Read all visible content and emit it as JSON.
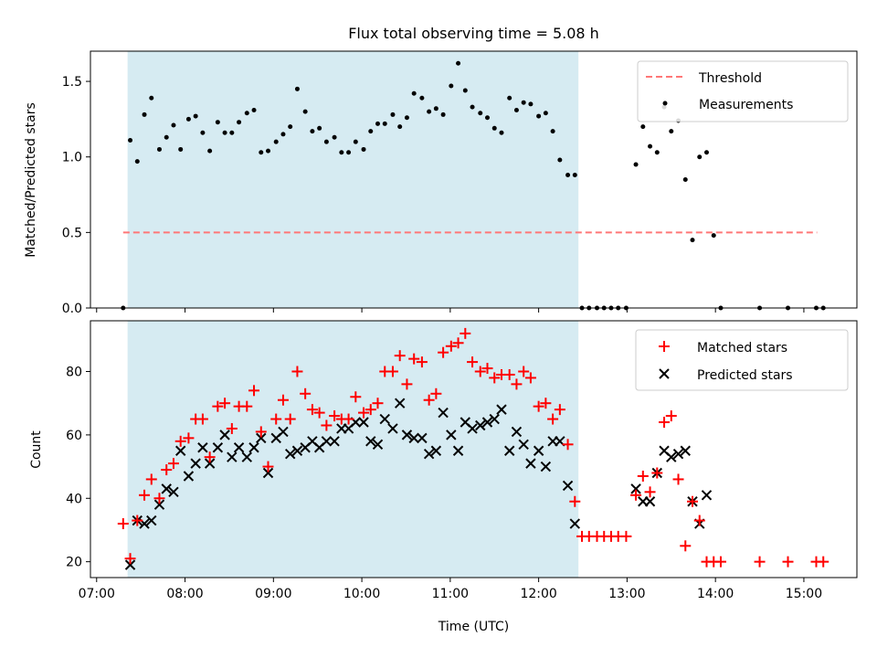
{
  "chart_data": [
    {
      "type": "scatter",
      "title": "Flux total observing time = 5.08 h",
      "xlabel": "",
      "ylabel": "Matched/Predicted stars",
      "x_unit": "time of day (UTC), decimal hours",
      "xlim": [
        6.93,
        15.6
      ],
      "ylim": [
        0.0,
        1.7
      ],
      "yticks": [
        0.0,
        0.5,
        1.0,
        1.5
      ],
      "xticks": [
        7,
        8,
        9,
        10,
        11,
        12,
        13,
        14,
        15
      ],
      "shaded_span": [
        7.35,
        12.45
      ],
      "threshold": {
        "name": "Threshold",
        "y": 0.5,
        "x_range": [
          7.3,
          15.15
        ],
        "color": "#ff7777"
      },
      "legend": [
        "Threshold",
        "Measurements"
      ],
      "legend_position": "upper right",
      "series": [
        {
          "name": "Measurements",
          "color": "#000000",
          "x": [
            7.3,
            7.38,
            7.46,
            7.54,
            7.62,
            7.71,
            7.79,
            7.87,
            7.95,
            8.04,
            8.12,
            8.2,
            8.28,
            8.37,
            8.45,
            8.53,
            8.61,
            8.7,
            8.78,
            8.86,
            8.94,
            9.03,
            9.11,
            9.19,
            9.27,
            9.36,
            9.44,
            9.52,
            9.6,
            9.69,
            9.77,
            9.85,
            9.93,
            10.02,
            10.1,
            10.18,
            10.26,
            10.35,
            10.43,
            10.51,
            10.59,
            10.68,
            10.76,
            10.84,
            10.92,
            11.01,
            11.09,
            11.17,
            11.25,
            11.34,
            11.42,
            11.5,
            11.58,
            11.67,
            11.75,
            11.83,
            11.91,
            12.0,
            12.08,
            12.16,
            12.24,
            12.33,
            12.41,
            12.49,
            12.57,
            12.66,
            12.74,
            12.82,
            12.9,
            12.99,
            13.1,
            13.18,
            13.26,
            13.34,
            13.42,
            13.5,
            13.58,
            13.66,
            13.74,
            13.82,
            13.9,
            13.98,
            14.06,
            14.5,
            14.82,
            15.14,
            15.22
          ],
          "y": [
            0.0,
            1.11,
            0.97,
            1.28,
            1.39,
            1.05,
            1.13,
            1.21,
            1.05,
            1.25,
            1.27,
            1.16,
            1.04,
            1.23,
            1.16,
            1.16,
            1.23,
            1.29,
            1.31,
            1.03,
            1.04,
            1.1,
            1.15,
            1.2,
            1.45,
            1.3,
            1.17,
            1.19,
            1.1,
            1.13,
            1.03,
            1.03,
            1.1,
            1.05,
            1.17,
            1.22,
            1.22,
            1.28,
            1.2,
            1.26,
            1.42,
            1.39,
            1.3,
            1.32,
            1.28,
            1.47,
            1.62,
            1.44,
            1.33,
            1.29,
            1.26,
            1.19,
            1.16,
            1.39,
            1.31,
            1.36,
            1.35,
            1.27,
            1.29,
            1.17,
            0.98,
            0.88,
            0.88,
            0.0,
            0.0,
            0.0,
            0.0,
            0.0,
            0.0,
            0.0,
            0.95,
            1.2,
            1.07,
            1.03,
            1.33,
            1.17,
            1.24,
            0.85,
            0.45,
            1.0,
            1.03,
            0.48,
            0.0,
            0.0,
            0.0,
            0.0,
            0.0
          ]
        }
      ]
    },
    {
      "type": "scatter",
      "title": "",
      "xlabel": "Time (UTC)",
      "ylabel": "Count",
      "x_unit": "time of day (UTC), decimal hours",
      "xlim": [
        6.93,
        15.6
      ],
      "ylim": [
        15,
        96
      ],
      "yticks": [
        20,
        40,
        60,
        80
      ],
      "xticks": [
        7,
        8,
        9,
        10,
        11,
        12,
        13,
        14,
        15
      ],
      "xtick_labels": [
        "07:00",
        "08:00",
        "09:00",
        "10:00",
        "11:00",
        "12:00",
        "13:00",
        "14:00",
        "15:00"
      ],
      "shaded_span": [
        7.35,
        12.45
      ],
      "legend": [
        "Matched stars",
        "Predicted stars"
      ],
      "legend_position": "upper right",
      "series": [
        {
          "name": "Matched stars",
          "marker": "+",
          "color": "#ff0000",
          "x": [
            7.3,
            7.38,
            7.46,
            7.54,
            7.62,
            7.71,
            7.79,
            7.87,
            7.95,
            8.04,
            8.12,
            8.2,
            8.28,
            8.37,
            8.45,
            8.53,
            8.61,
            8.7,
            8.78,
            8.86,
            8.94,
            9.03,
            9.11,
            9.19,
            9.27,
            9.36,
            9.44,
            9.52,
            9.6,
            9.69,
            9.77,
            9.85,
            9.93,
            10.02,
            10.1,
            10.18,
            10.26,
            10.35,
            10.43,
            10.51,
            10.59,
            10.68,
            10.76,
            10.84,
            10.92,
            11.01,
            11.09,
            11.17,
            11.25,
            11.34,
            11.42,
            11.5,
            11.58,
            11.67,
            11.75,
            11.83,
            11.91,
            12.0,
            12.08,
            12.16,
            12.24,
            12.33,
            12.41,
            12.49,
            12.57,
            12.66,
            12.74,
            12.82,
            12.9,
            12.99,
            13.1,
            13.18,
            13.26,
            13.34,
            13.42,
            13.5,
            13.58,
            13.66,
            13.74,
            13.82,
            13.9,
            13.98,
            14.06,
            14.5,
            14.82,
            15.14,
            15.22
          ],
          "y": [
            32,
            21,
            33,
            41,
            46,
            40,
            49,
            51,
            58,
            59,
            65,
            65,
            53,
            69,
            70,
            62,
            69,
            69,
            74,
            61,
            50,
            65,
            71,
            65,
            80,
            73,
            68,
            67,
            63,
            66,
            65,
            65,
            72,
            67,
            68,
            70,
            80,
            80,
            85,
            76,
            84,
            83,
            71,
            73,
            86,
            88,
            89,
            92,
            83,
            80,
            81,
            78,
            79,
            79,
            76,
            80,
            78,
            69,
            70,
            65,
            68,
            57,
            39,
            28,
            28,
            28,
            28,
            28,
            28,
            28,
            41,
            47,
            42,
            48,
            64,
            66,
            46,
            25,
            39,
            33,
            20,
            20,
            20,
            20,
            20,
            20,
            20
          ]
        },
        {
          "name": "Predicted stars",
          "marker": "x",
          "color": "#000000",
          "x": [
            7.38,
            7.46,
            7.54,
            7.62,
            7.71,
            7.79,
            7.87,
            7.95,
            8.04,
            8.12,
            8.2,
            8.28,
            8.37,
            8.45,
            8.53,
            8.61,
            8.7,
            8.78,
            8.86,
            8.94,
            9.03,
            9.11,
            9.19,
            9.27,
            9.36,
            9.44,
            9.52,
            9.6,
            9.69,
            9.77,
            9.85,
            9.93,
            10.02,
            10.1,
            10.18,
            10.26,
            10.35,
            10.43,
            10.51,
            10.59,
            10.68,
            10.76,
            10.84,
            10.92,
            11.01,
            11.09,
            11.17,
            11.25,
            11.34,
            11.42,
            11.5,
            11.58,
            11.67,
            11.75,
            11.83,
            11.91,
            12.0,
            12.08,
            12.16,
            12.24,
            12.33,
            12.41,
            13.1,
            13.18,
            13.26,
            13.34,
            13.42,
            13.5,
            13.58,
            13.66,
            13.74,
            13.82,
            13.9
          ],
          "y": [
            19,
            33,
            32,
            33,
            38,
            43,
            42,
            55,
            47,
            51,
            56,
            51,
            56,
            60,
            53,
            56,
            53,
            56,
            59,
            48,
            59,
            61,
            54,
            55,
            56,
            58,
            56,
            58,
            58,
            62,
            62,
            64,
            64,
            58,
            57,
            65,
            62,
            70,
            60,
            59,
            59,
            54,
            55,
            67,
            60,
            55,
            64,
            62,
            63,
            64,
            65,
            68,
            55,
            61,
            57,
            51,
            55,
            50,
            58,
            58,
            44,
            32,
            43,
            39,
            39,
            48,
            55,
            53,
            54,
            55,
            39,
            32,
            41
          ]
        }
      ]
    }
  ]
}
